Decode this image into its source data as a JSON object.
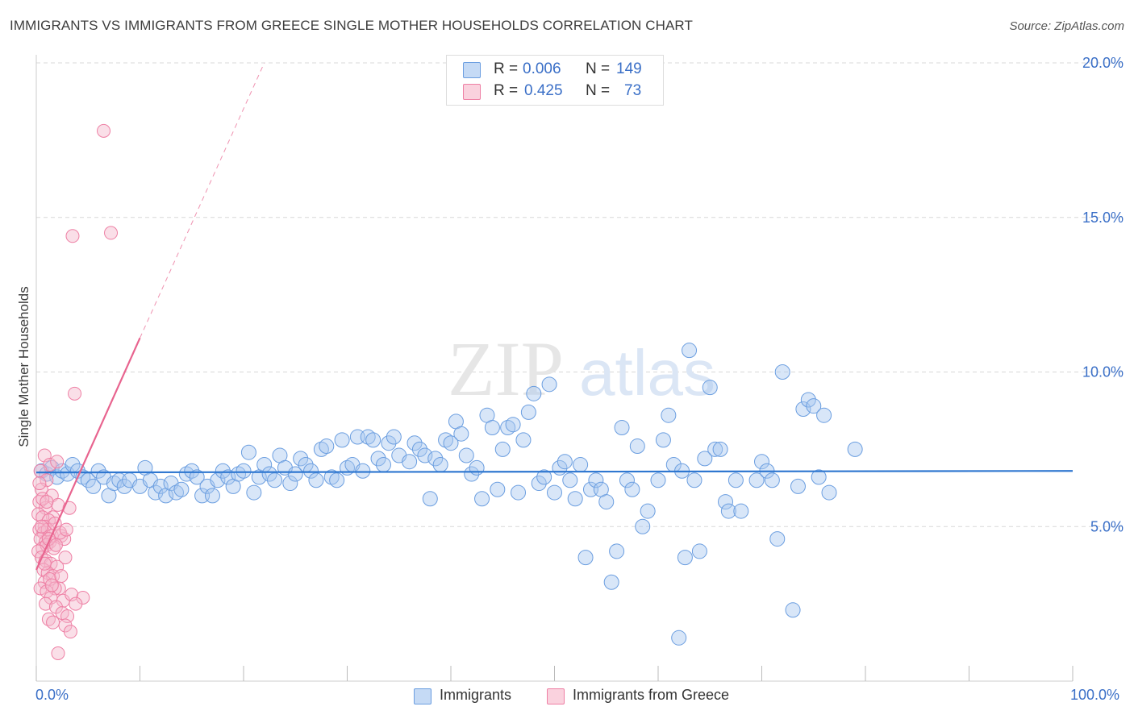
{
  "header": {
    "title": "IMMIGRANTS VS IMMIGRANTS FROM GREECE SINGLE MOTHER HOUSEHOLDS CORRELATION CHART",
    "source": "Source: ZipAtlas.com"
  },
  "watermark": {
    "zip": "ZIP",
    "atlas": "atlas"
  },
  "legend_top": {
    "rows": [
      {
        "r_label": "R =",
        "r_value": "0.006",
        "n_label": "N =",
        "n_value": "149",
        "color": "#a9c8f0"
      },
      {
        "r_label": "R =",
        "r_value": "0.425",
        "n_label": "N =",
        "n_value": "73",
        "color": "#f5b8cb"
      }
    ]
  },
  "x_axis": {
    "min_label": "0.0%",
    "max_label": "100.0%"
  },
  "colors": {
    "blue_fill": "#a9c8f0",
    "blue_stroke": "#6b9ee0",
    "blue_line": "#2f77d0",
    "pink_fill": "#f5b8cb",
    "pink_stroke": "#ee7fa4",
    "pink_line": "#e8648f",
    "grid": "#d8d8d8",
    "axis_text": "#3a6fc7"
  },
  "chart_data": {
    "type": "scatter",
    "title": "IMMIGRANTS VS IMMIGRANTS FROM GREECE SINGLE MOTHER HOUSEHOLDS CORRELATION CHART",
    "xlabel": "",
    "ylabel": "Single Mother Households",
    "xlim": [
      0,
      100
    ],
    "ylim": [
      0,
      20.5
    ],
    "y_ticks": [
      {
        "value": 5,
        "label": "5.0%"
      },
      {
        "value": 10,
        "label": "10.0%"
      },
      {
        "value": 15,
        "label": "15.0%"
      },
      {
        "value": 20,
        "label": "20.0%"
      }
    ],
    "x_ticks": [
      0,
      10,
      20,
      30,
      40,
      50,
      60,
      70,
      80,
      90,
      100
    ],
    "grid": true,
    "legend_position": "bottom",
    "series": [
      {
        "name": "Immigrants",
        "color": "#a9c8f0",
        "trend": {
          "x0": 0,
          "y0": 6.75,
          "x1": 100,
          "y1": 6.8,
          "style": "solid"
        },
        "points": [
          [
            0.5,
            6.8
          ],
          [
            1.0,
            6.7
          ],
          [
            1.5,
            6.9
          ],
          [
            2.0,
            6.6
          ],
          [
            2.5,
            6.8
          ],
          [
            3.0,
            6.7
          ],
          [
            3.5,
            7.0
          ],
          [
            4.0,
            6.8
          ],
          [
            4.5,
            6.6
          ],
          [
            5.0,
            6.5
          ],
          [
            5.5,
            6.3
          ],
          [
            6.0,
            6.8
          ],
          [
            6.5,
            6.6
          ],
          [
            7.0,
            6.0
          ],
          [
            7.5,
            6.4
          ],
          [
            8.0,
            6.5
          ],
          [
            8.5,
            6.3
          ],
          [
            9.0,
            6.5
          ],
          [
            10.0,
            6.3
          ],
          [
            10.5,
            6.9
          ],
          [
            11.0,
            6.5
          ],
          [
            11.5,
            6.1
          ],
          [
            12.0,
            6.3
          ],
          [
            12.5,
            6.0
          ],
          [
            13.0,
            6.4
          ],
          [
            13.5,
            6.1
          ],
          [
            14.0,
            6.2
          ],
          [
            14.5,
            6.7
          ],
          [
            15.0,
            6.8
          ],
          [
            15.5,
            6.6
          ],
          [
            16.0,
            6.0
          ],
          [
            16.5,
            6.3
          ],
          [
            17.0,
            6.0
          ],
          [
            17.5,
            6.5
          ],
          [
            18.0,
            6.8
          ],
          [
            18.5,
            6.6
          ],
          [
            19.0,
            6.3
          ],
          [
            19.5,
            6.7
          ],
          [
            20.0,
            6.8
          ],
          [
            20.5,
            7.4
          ],
          [
            21.0,
            6.1
          ],
          [
            21.5,
            6.6
          ],
          [
            22.0,
            7.0
          ],
          [
            22.5,
            6.7
          ],
          [
            23.0,
            6.5
          ],
          [
            23.5,
            7.3
          ],
          [
            24.0,
            6.9
          ],
          [
            24.5,
            6.4
          ],
          [
            25.0,
            6.7
          ],
          [
            25.5,
            7.2
          ],
          [
            26.0,
            7.0
          ],
          [
            26.5,
            6.8
          ],
          [
            27.0,
            6.5
          ],
          [
            27.5,
            7.5
          ],
          [
            28.0,
            7.6
          ],
          [
            28.5,
            6.6
          ],
          [
            29.0,
            6.5
          ],
          [
            29.5,
            7.8
          ],
          [
            30.0,
            6.9
          ],
          [
            30.5,
            7.0
          ],
          [
            31.0,
            7.9
          ],
          [
            31.5,
            6.8
          ],
          [
            32.0,
            7.9
          ],
          [
            32.5,
            7.8
          ],
          [
            33.0,
            7.2
          ],
          [
            33.5,
            7.0
          ],
          [
            34.0,
            7.7
          ],
          [
            34.5,
            7.9
          ],
          [
            35.0,
            7.3
          ],
          [
            36.0,
            7.1
          ],
          [
            36.5,
            7.7
          ],
          [
            37.0,
            7.5
          ],
          [
            37.5,
            7.3
          ],
          [
            38.0,
            5.9
          ],
          [
            38.5,
            7.2
          ],
          [
            39.0,
            7.0
          ],
          [
            39.5,
            7.8
          ],
          [
            40.0,
            7.7
          ],
          [
            40.5,
            8.4
          ],
          [
            41.0,
            8.0
          ],
          [
            41.5,
            7.3
          ],
          [
            42.0,
            6.7
          ],
          [
            42.5,
            6.9
          ],
          [
            43.0,
            5.9
          ],
          [
            43.5,
            8.6
          ],
          [
            44.0,
            8.2
          ],
          [
            44.5,
            6.2
          ],
          [
            45.0,
            7.5
          ],
          [
            45.5,
            8.2
          ],
          [
            46.0,
            8.3
          ],
          [
            46.5,
            6.1
          ],
          [
            47.0,
            7.8
          ],
          [
            47.5,
            8.7
          ],
          [
            48.0,
            9.3
          ],
          [
            48.5,
            6.4
          ],
          [
            49.0,
            6.6
          ],
          [
            49.5,
            9.6
          ],
          [
            50.0,
            6.1
          ],
          [
            50.5,
            6.9
          ],
          [
            51.0,
            7.1
          ],
          [
            51.5,
            6.5
          ],
          [
            52.0,
            5.9
          ],
          [
            52.5,
            7.0
          ],
          [
            53.0,
            4.0
          ],
          [
            53.5,
            6.2
          ],
          [
            54.0,
            6.5
          ],
          [
            54.5,
            6.2
          ],
          [
            55.0,
            5.8
          ],
          [
            55.5,
            3.2
          ],
          [
            56.0,
            4.2
          ],
          [
            56.5,
            8.2
          ],
          [
            57.0,
            6.5
          ],
          [
            57.5,
            6.2
          ],
          [
            58.0,
            7.6
          ],
          [
            58.5,
            5.0
          ],
          [
            59.0,
            5.5
          ],
          [
            60.0,
            6.5
          ],
          [
            60.5,
            7.8
          ],
          [
            61.0,
            8.6
          ],
          [
            61.5,
            7.0
          ],
          [
            62.0,
            1.4
          ],
          [
            62.3,
            6.8
          ],
          [
            62.6,
            4.0
          ],
          [
            63.0,
            10.7
          ],
          [
            63.5,
            6.5
          ],
          [
            64.0,
            4.2
          ],
          [
            64.5,
            7.2
          ],
          [
            65.0,
            9.5
          ],
          [
            65.5,
            7.5
          ],
          [
            66.0,
            7.5
          ],
          [
            66.5,
            5.8
          ],
          [
            66.8,
            5.5
          ],
          [
            67.5,
            6.5
          ],
          [
            68.0,
            5.5
          ],
          [
            69.5,
            6.5
          ],
          [
            70.0,
            7.1
          ],
          [
            70.5,
            6.8
          ],
          [
            71.0,
            6.5
          ],
          [
            71.5,
            4.6
          ],
          [
            72.0,
            10.0
          ],
          [
            73.0,
            2.3
          ],
          [
            73.5,
            6.3
          ],
          [
            74.0,
            8.8
          ],
          [
            74.5,
            9.1
          ],
          [
            75.0,
            8.9
          ],
          [
            75.5,
            6.6
          ],
          [
            76.0,
            8.6
          ],
          [
            76.5,
            6.1
          ],
          [
            79.0,
            7.5
          ]
        ]
      },
      {
        "name": "Immigrants from Greece",
        "color": "#f5b8cb",
        "trend": {
          "x0": 0,
          "y0": 3.6,
          "x1": 10,
          "y1": 11.1,
          "x_ext": 22,
          "y_ext": 20.0,
          "style": "solid-then-dashed"
        },
        "points": [
          [
            6.5,
            17.8
          ],
          [
            7.2,
            14.5
          ],
          [
            3.5,
            14.4
          ],
          [
            3.7,
            9.3
          ],
          [
            0.8,
            7.3
          ],
          [
            1.3,
            7.0
          ],
          [
            2.0,
            7.1
          ],
          [
            0.4,
            6.8
          ],
          [
            1.0,
            6.5
          ],
          [
            0.5,
            6.2
          ],
          [
            1.5,
            6.0
          ],
          [
            0.3,
            5.8
          ],
          [
            0.9,
            5.6
          ],
          [
            1.6,
            5.3
          ],
          [
            2.1,
            5.7
          ],
          [
            3.2,
            5.6
          ],
          [
            0.2,
            5.4
          ],
          [
            0.6,
            5.3
          ],
          [
            1.2,
            5.2
          ],
          [
            0.8,
            5.0
          ],
          [
            0.3,
            4.9
          ],
          [
            0.7,
            4.8
          ],
          [
            1.1,
            4.9
          ],
          [
            1.5,
            4.7
          ],
          [
            2.4,
            4.7
          ],
          [
            2.7,
            4.6
          ],
          [
            0.4,
            4.6
          ],
          [
            0.9,
            4.5
          ],
          [
            1.3,
            4.5
          ],
          [
            0.6,
            4.3
          ],
          [
            1.0,
            4.4
          ],
          [
            0.2,
            4.2
          ],
          [
            1.7,
            4.3
          ],
          [
            2.8,
            4.0
          ],
          [
            0.5,
            4.0
          ],
          [
            0.9,
            3.9
          ],
          [
            1.4,
            3.8
          ],
          [
            2.0,
            3.7
          ],
          [
            0.7,
            3.6
          ],
          [
            1.1,
            3.5
          ],
          [
            1.6,
            3.4
          ],
          [
            0.8,
            3.2
          ],
          [
            1.3,
            3.3
          ],
          [
            2.2,
            3.0
          ],
          [
            1.8,
            3.0
          ],
          [
            0.4,
            3.0
          ],
          [
            1.0,
            2.9
          ],
          [
            1.4,
            2.7
          ],
          [
            2.6,
            2.6
          ],
          [
            3.4,
            2.8
          ],
          [
            4.5,
            2.7
          ],
          [
            0.9,
            2.5
          ],
          [
            1.9,
            2.4
          ],
          [
            2.5,
            2.2
          ],
          [
            3.0,
            2.1
          ],
          [
            1.2,
            2.0
          ],
          [
            1.6,
            1.9
          ],
          [
            2.8,
            1.8
          ],
          [
            3.3,
            1.6
          ],
          [
            2.1,
            0.9
          ],
          [
            0.3,
            6.4
          ],
          [
            0.6,
            5.9
          ],
          [
            1.8,
            5.1
          ],
          [
            2.3,
            4.8
          ],
          [
            1.0,
            5.8
          ],
          [
            0.5,
            5.0
          ],
          [
            1.2,
            4.6
          ],
          [
            1.9,
            4.4
          ],
          [
            0.8,
            3.8
          ],
          [
            2.4,
            3.4
          ],
          [
            1.5,
            3.1
          ],
          [
            3.8,
            2.5
          ],
          [
            2.9,
            4.9
          ]
        ]
      }
    ]
  },
  "legend_bottom": {
    "items": [
      {
        "label": "Immigrants",
        "color": "#a9c8f0"
      },
      {
        "label": "Immigrants from Greece",
        "color": "#f5b8cb"
      }
    ]
  }
}
